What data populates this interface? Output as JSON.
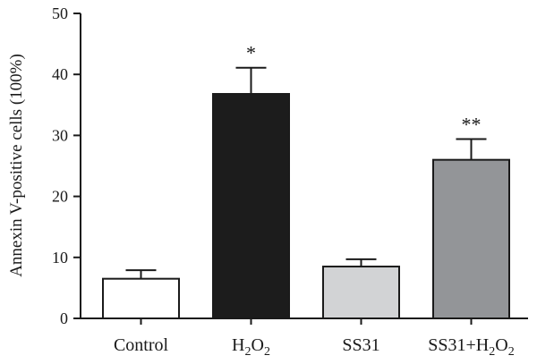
{
  "chart_data": {
    "type": "bar",
    "title": "",
    "xlabel": "",
    "ylabel": "Annexin V-positive cells (100%)",
    "ylim": [
      0,
      50
    ],
    "yticks": [
      0,
      10,
      20,
      30,
      40,
      50
    ],
    "grid": false,
    "categories": [
      {
        "label": "Control",
        "value": 6.5,
        "error": 1.4,
        "color": "#ffffff",
        "annotation": ""
      },
      {
        "label": "H2O2",
        "main": "H",
        "sub1": "2",
        "mid": "O",
        "sub2": "2",
        "value": 36.8,
        "error": 4.3,
        "color": "#1c1c1c",
        "annotation": "*"
      },
      {
        "label": "SS31",
        "value": 8.5,
        "error": 1.2,
        "color": "#d2d3d5",
        "annotation": ""
      },
      {
        "label": "SS31+H2O2",
        "main": "SS31+H",
        "sub1": "2",
        "mid": "O",
        "sub2": "2",
        "value": 26.0,
        "error": 3.4,
        "color": "#939598",
        "annotation": "**"
      }
    ]
  }
}
